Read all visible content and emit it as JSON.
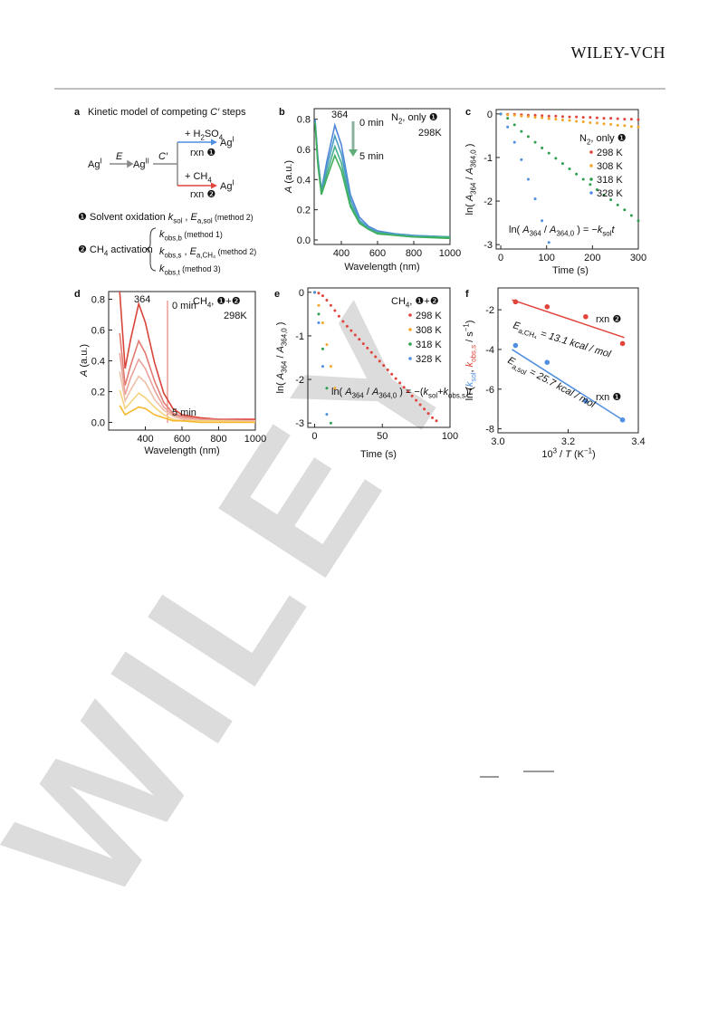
{
  "header": {
    "brand": "WILEY-VCH"
  },
  "watermark": "WILEY",
  "figure": {
    "panel_a": {
      "label": "a",
      "title": [
        {
          "t": "Kinetic model of competing "
        },
        {
          "t": "C′",
          "i": 1
        },
        {
          "t": " steps"
        }
      ],
      "ag_start": [
        {
          "t": "Ag"
        },
        {
          "t": "I",
          "s": "sup"
        }
      ],
      "e_step": "E",
      "ag_mid": [
        {
          "t": "Ag"
        },
        {
          "t": "II",
          "s": "sup"
        }
      ],
      "c_step": "C′",
      "h2so4": [
        {
          "t": "+ H"
        },
        {
          "t": "2",
          "s": "sub"
        },
        {
          "t": "SO"
        },
        {
          "t": "4",
          "s": "sub"
        }
      ],
      "rxn1": "rxn ❶",
      "ag_top": [
        {
          "t": "Ag"
        },
        {
          "t": "I",
          "s": "sup"
        }
      ],
      "ch4": [
        {
          "t": "+ CH"
        },
        {
          "t": "4",
          "s": "sub"
        }
      ],
      "rxn2": "rxn ❷",
      "ag_bottom": [
        {
          "t": "Ag"
        },
        {
          "t": "I",
          "s": "sup"
        }
      ],
      "item1": [
        {
          "t": "❶ Solvent oxidation  "
        },
        {
          "t": "k",
          "i": 1
        },
        {
          "t": "sol",
          "s": "sub"
        },
        {
          "t": " , "
        },
        {
          "t": "E",
          "i": 1
        },
        {
          "t": "a,sol",
          "s": "sub"
        },
        {
          "t": " (method 2)",
          "s": "small"
        }
      ],
      "item2": [
        {
          "t": "❷ CH"
        },
        {
          "t": "4",
          "s": "sub"
        },
        {
          "t": " activation"
        }
      ],
      "method1": [
        {
          "t": "k",
          "i": 1
        },
        {
          "t": "obs,b",
          "s": "sub"
        },
        {
          "t": " (method 1)",
          "s": "small"
        }
      ],
      "method2": [
        {
          "t": "k",
          "i": 1
        },
        {
          "t": "obs,s",
          "s": "sub"
        },
        {
          "t": " , "
        },
        {
          "t": "E",
          "i": 1
        },
        {
          "t": "a,CH₄",
          "s": "sub"
        },
        {
          "t": " (method 2)",
          "s": "small"
        }
      ],
      "method3": [
        {
          "t": "k",
          "i": 1
        },
        {
          "t": "obs,t",
          "s": "sub"
        },
        {
          "t": " (method 3)",
          "s": "small"
        }
      ]
    }
  },
  "chart_data": [
    {
      "type": "line",
      "label": "b",
      "xlabel": "Wavelength (nm)",
      "ylabel": [
        {
          "t": "A",
          "i": 1
        },
        {
          "t": " (a.u.)"
        }
      ],
      "x": [
        255,
        270,
        290,
        320,
        364,
        400,
        450,
        500,
        550,
        600,
        700,
        800,
        1000
      ],
      "xlim": [
        250,
        1000
      ],
      "ylim": [
        -0.03,
        0.87
      ],
      "xticks": [
        400,
        600,
        800,
        1000
      ],
      "yticks": [
        {
          "value": 0,
          "label": "0.0"
        },
        0.2,
        0.4,
        0.6,
        0.8
      ],
      "series": [
        {
          "color": "#4f86d9",
          "values": [
            0.8,
            0.55,
            0.33,
            0.52,
            0.76,
            0.63,
            0.3,
            0.15,
            0.09,
            0.06,
            0.04,
            0.03,
            0.02
          ]
        },
        {
          "color": "#4a9ec0",
          "values": [
            0.79,
            0.53,
            0.32,
            0.48,
            0.69,
            0.57,
            0.27,
            0.13,
            0.08,
            0.05,
            0.04,
            0.03,
            0.02
          ]
        },
        {
          "color": "#44ae8a",
          "values": [
            0.78,
            0.52,
            0.31,
            0.44,
            0.62,
            0.51,
            0.24,
            0.12,
            0.07,
            0.05,
            0.03,
            0.02,
            0.02
          ]
        },
        {
          "color": "#3fae5a",
          "values": [
            0.77,
            0.5,
            0.3,
            0.41,
            0.56,
            0.46,
            0.22,
            0.11,
            0.07,
            0.04,
            0.03,
            0.02,
            0.01
          ]
        }
      ],
      "annotations": [
        "364",
        "0 min",
        "5 min",
        [
          {
            "t": "N"
          },
          {
            "t": "2",
            "s": "sub"
          },
          {
            "t": ", only ❶"
          }
        ],
        "298K"
      ]
    },
    {
      "type": "scatter",
      "label": "c",
      "xlabel": "Time (s)",
      "ylabel": [
        {
          "t": "ln( "
        },
        {
          "t": "A",
          "i": 1
        },
        {
          "t": "364",
          "s": "sub"
        },
        {
          "t": " / "
        },
        {
          "t": "A",
          "i": 1
        },
        {
          "t": "364,0",
          "s": "sub"
        },
        {
          "t": " )"
        }
      ],
      "x": [
        0,
        15,
        30,
        45,
        60,
        75,
        90,
        105,
        120,
        135,
        150,
        165,
        180,
        195,
        210,
        225,
        240,
        255,
        270,
        285,
        300
      ],
      "xlim": [
        -10,
        300
      ],
      "ylim": [
        -3.1,
        0.1
      ],
      "xticks": [
        0,
        100,
        200,
        300
      ],
      "yticks": [
        0,
        -1,
        -2,
        -3
      ],
      "legend_title": [
        {
          "t": "N"
        },
        {
          "t": "2",
          "s": "sub"
        },
        {
          "t": ", only ❶"
        }
      ],
      "series": [
        {
          "name": "298 K",
          "color": "#e0443b",
          "values": [
            0,
            -0.01,
            -0.01,
            -0.02,
            -0.03,
            -0.03,
            -0.04,
            -0.05,
            -0.05,
            -0.06,
            -0.07,
            -0.07,
            -0.08,
            -0.08,
            -0.09,
            -0.1,
            -0.1,
            -0.11,
            -0.12,
            -0.12,
            -0.13
          ]
        },
        {
          "name": "308 K",
          "color": "#f3a72a",
          "values": [
            0,
            -0.02,
            -0.03,
            -0.05,
            -0.06,
            -0.08,
            -0.09,
            -0.11,
            -0.12,
            -0.14,
            -0.15,
            -0.17,
            -0.18,
            -0.2,
            -0.21,
            -0.23,
            -0.24,
            -0.26,
            -0.27,
            -0.29,
            -0.3
          ]
        },
        {
          "name": "318 K",
          "color": "#2f9e4f",
          "values": [
            0,
            -0.1,
            -0.25,
            -0.4,
            -0.52,
            -0.65,
            -0.78,
            -0.9,
            -1.02,
            -1.14,
            -1.26,
            -1.38,
            -1.5,
            -1.62,
            -1.74,
            -1.86,
            -1.97,
            -2.09,
            -2.2,
            -2.33,
            -2.45
          ]
        },
        {
          "name": "328 K",
          "color": "#4f8ee0",
          "values": [
            0,
            -0.3,
            -0.65,
            -1.05,
            -1.5,
            -1.95,
            -2.45,
            -2.95,
            null,
            null,
            null,
            null,
            null,
            null,
            null,
            null,
            null,
            null,
            null,
            null,
            null
          ]
        }
      ],
      "equation": [
        {
          "t": "ln( "
        },
        {
          "t": "A",
          "i": 1
        },
        {
          "t": "364",
          "s": "sub"
        },
        {
          "t": " / "
        },
        {
          "t": "A",
          "i": 1
        },
        {
          "t": "364,0",
          "s": "sub"
        },
        {
          "t": " ) = −"
        },
        {
          "t": "k",
          "i": 1
        },
        {
          "t": "sol",
          "s": "sub"
        },
        {
          "t": "t",
          "i": 1
        }
      ]
    },
    {
      "type": "line",
      "label": "d",
      "xlabel": "Wavelength (nm)",
      "ylabel": [
        {
          "t": "A",
          "i": 1
        },
        {
          "t": " (a.u.)"
        }
      ],
      "x": [
        260,
        290,
        320,
        364,
        400,
        450,
        500,
        550,
        600,
        700,
        800,
        1000
      ],
      "xlim": [
        200,
        1000
      ],
      "ylim": [
        -0.05,
        0.85
      ],
      "xticks": [
        400,
        600,
        800,
        1000
      ],
      "yticks": [
        {
          "value": 0,
          "label": "0.0"
        },
        0.2,
        0.4,
        0.6,
        0.8
      ],
      "series": [
        {
          "color": "#d8443a",
          "values": [
            0.85,
            0.35,
            0.54,
            0.77,
            0.65,
            0.39,
            0.19,
            0.09,
            0.05,
            0.03,
            0.02,
            0.02
          ]
        },
        {
          "color": "#e27c72",
          "values": [
            0.58,
            0.24,
            0.37,
            0.53,
            0.45,
            0.27,
            0.13,
            0.06,
            0.04,
            0.02,
            0.02,
            0.01
          ]
        },
        {
          "color": "#eaa29b",
          "values": [
            0.45,
            0.18,
            0.29,
            0.41,
            0.35,
            0.21,
            0.1,
            0.05,
            0.03,
            0.02,
            0.01,
            0.01
          ]
        },
        {
          "color": "#efbfa6",
          "values": [
            0.33,
            0.14,
            0.21,
            0.3,
            0.26,
            0.15,
            0.08,
            0.04,
            0.02,
            0.01,
            0.01,
            0.01
          ]
        },
        {
          "color": "#f6d27c",
          "values": [
            0.21,
            0.09,
            0.13,
            0.19,
            0.16,
            0.1,
            0.05,
            0.02,
            0.01,
            0.01,
            0.01,
            0
          ]
        },
        {
          "color": "#f5b82e",
          "values": [
            0.11,
            0.05,
            0.07,
            0.1,
            0.09,
            0.05,
            0.03,
            0.01,
            0.01,
            0,
            0,
            0
          ]
        }
      ],
      "annotations": [
        "364",
        "0 min",
        "5 min",
        [
          {
            "t": "CH"
          },
          {
            "t": "4",
            "s": "sub"
          },
          {
            "t": ", ❶+❷"
          }
        ],
        "298K"
      ]
    },
    {
      "type": "scatter",
      "label": "e",
      "xlabel": "Time (s)",
      "ylabel": [
        {
          "t": "ln( "
        },
        {
          "t": "A",
          "i": 1
        },
        {
          "t": "364",
          "s": "sub"
        },
        {
          "t": " / "
        },
        {
          "t": "A",
          "i": 1
        },
        {
          "t": "364,0",
          "s": "sub"
        },
        {
          "t": " )"
        }
      ],
      "xlim": [
        -5,
        100
      ],
      "ylim": [
        -3.1,
        0.1
      ],
      "xticks": [
        0,
        50,
        100
      ],
      "yticks": [
        0,
        -1,
        -2,
        -3
      ],
      "legend_title": [
        {
          "t": "CH"
        },
        {
          "t": "4",
          "s": "sub"
        },
        {
          "t": ", ❶+❷"
        }
      ],
      "series": [
        {
          "name": "298 K",
          "color": "#e0443b",
          "x": [
            0,
            3,
            6,
            9,
            12,
            15,
            18,
            21,
            24,
            27,
            30,
            33,
            36,
            39,
            42,
            45,
            48,
            51,
            54,
            57,
            60,
            63,
            66,
            69,
            72,
            75,
            78,
            81,
            84,
            87,
            90
          ],
          "values": [
            0,
            -0.02,
            -0.08,
            -0.18,
            -0.3,
            -0.42,
            -0.55,
            -0.67,
            -0.78,
            -0.88,
            -0.98,
            -1.08,
            -1.18,
            -1.28,
            -1.38,
            -1.48,
            -1.58,
            -1.68,
            -1.78,
            -1.88,
            -1.98,
            -2.08,
            -2.18,
            -2.28,
            -2.38,
            -2.48,
            -2.58,
            -2.68,
            -2.78,
            -2.88,
            -2.95
          ]
        },
        {
          "name": "308 K",
          "color": "#f3a72a",
          "x": [
            0,
            3,
            6,
            9,
            12,
            15
          ],
          "values": [
            0,
            -0.3,
            -0.7,
            -1.2,
            -1.7,
            -2.2
          ]
        },
        {
          "name": "318 K",
          "color": "#2f9e4f",
          "x": [
            0,
            3,
            6,
            9,
            12
          ],
          "values": [
            0,
            -0.5,
            -1.3,
            -2.2,
            -3.0
          ]
        },
        {
          "name": "328 K",
          "color": "#4f8ee0",
          "x": [
            0,
            3,
            6,
            9
          ],
          "values": [
            0,
            -0.7,
            -1.7,
            -2.8
          ]
        }
      ],
      "equation": [
        {
          "t": "ln( "
        },
        {
          "t": "A",
          "i": 1
        },
        {
          "t": "364",
          "s": "sub"
        },
        {
          "t": " / "
        },
        {
          "t": "A",
          "i": 1
        },
        {
          "t": "364,0",
          "s": "sub"
        },
        {
          "t": " ) = −("
        },
        {
          "t": "k",
          "i": 1
        },
        {
          "t": "sol",
          "s": "sub"
        },
        {
          "t": "+"
        },
        {
          "t": "k",
          "i": 1
        },
        {
          "t": "obs,s",
          "s": "sub"
        },
        {
          "t": ")"
        },
        {
          "t": "t",
          "i": 1
        }
      ]
    },
    {
      "type": "scatter",
      "label": "f",
      "xlabel": [
        {
          "t": "10"
        },
        {
          "t": "3",
          "s": "sup"
        },
        {
          "t": " / "
        },
        {
          "t": "T",
          "i": 1
        },
        {
          "t": " (K"
        },
        {
          "t": "−1",
          "s": "sup"
        },
        {
          "t": ")"
        }
      ],
      "ylabel": [
        {
          "t": "ln ("
        },
        {
          "t": "k",
          "i": 1,
          "c": "#4f8ee0"
        },
        {
          "t": "sol",
          "s": "sub",
          "c": "#4f8ee0"
        },
        {
          "t": ", "
        },
        {
          "t": "k",
          "i": 1,
          "c": "#e0443b"
        },
        {
          "t": "obs,s",
          "s": "sub",
          "c": "#e0443b"
        },
        {
          "t": " / s"
        },
        {
          "t": "−1",
          "s": "sup"
        },
        {
          "t": ")"
        }
      ],
      "xlim": [
        3.0,
        3.4
      ],
      "ylim": [
        -8.2,
        -0.9
      ],
      "xticks": [
        {
          "value": 3,
          "label": "3.0"
        },
        3.2,
        3.4
      ],
      "yticks": [
        -2,
        -4,
        -6,
        -8
      ],
      "series": [
        {
          "color": "#e0443b",
          "x": [
            3.05,
            3.14,
            3.25,
            3.355
          ],
          "values": [
            -1.6,
            -1.85,
            -2.35,
            -3.7
          ],
          "fit_x": [
            3.04,
            3.36
          ],
          "fit_values": [
            -1.5,
            -3.4
          ]
        },
        {
          "color": "#4f8ee0",
          "x": [
            3.05,
            3.14,
            3.25,
            3.355
          ],
          "values": [
            -3.8,
            -4.65,
            -6.6,
            -7.55
          ],
          "fit_x": [
            3.04,
            3.36
          ],
          "fit_values": [
            -4.0,
            -7.6
          ]
        }
      ],
      "annotations": [
        "rxn ❷",
        "rxn ❶",
        [
          {
            "t": "E",
            "i": 1
          },
          {
            "t": "a,CH₄",
            "s": "sub"
          },
          {
            "t": " = 13.1 kcal / mol",
            "i": 1
          }
        ],
        [
          {
            "t": "E",
            "i": 1
          },
          {
            "t": "a,sol",
            "s": "sub"
          },
          {
            "t": " = 25.7 kcal / mol",
            "i": 1
          }
        ]
      ]
    }
  ]
}
